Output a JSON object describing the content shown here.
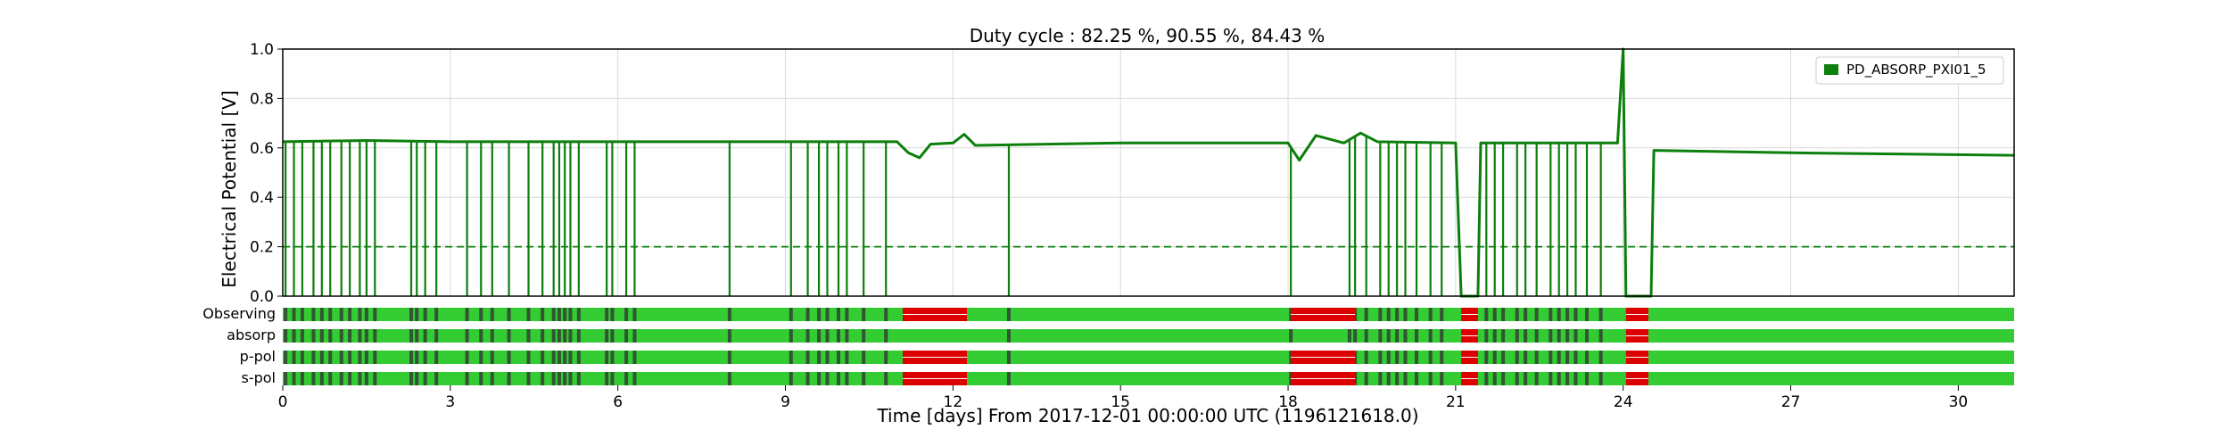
{
  "chart_data": {
    "type": "line",
    "title": "Duty cycle : 82.25 %, 90.55 %, 84.43 %",
    "ylabel": "Electrical Potential [V]",
    "xlabel": "Time [days] From 2017-12-01 00:00:00 UTC (1196121618.0)",
    "xlim": [
      0,
      31
    ],
    "ylim": [
      0,
      1.0
    ],
    "x_ticks": [
      0,
      3,
      6,
      9,
      12,
      15,
      18,
      21,
      24,
      27,
      30
    ],
    "y_ticks": [
      0.0,
      0.2,
      0.4,
      0.6,
      0.8,
      1.0
    ],
    "x_tick_labels": [
      "0",
      "3",
      "6",
      "9",
      "12",
      "15",
      "18",
      "21",
      "24",
      "27",
      "30"
    ],
    "y_tick_labels": [
      "0.0",
      "0.2",
      "0.4",
      "0.6",
      "0.8",
      "1.0"
    ],
    "grid": true,
    "legend_position": "top-right",
    "series": [
      {
        "name": "PD_ABSORP_PXI01_5",
        "color": "#0c7f0c",
        "baseline": [
          [
            0,
            0.625
          ],
          [
            1.5,
            0.63
          ],
          [
            3,
            0.625
          ],
          [
            6,
            0.625
          ],
          [
            9,
            0.625
          ],
          [
            11.0,
            0.625
          ],
          [
            11.2,
            0.58
          ],
          [
            11.4,
            0.56
          ],
          [
            11.6,
            0.615
          ],
          [
            12.0,
            0.62
          ],
          [
            12.2,
            0.655
          ],
          [
            12.4,
            0.61
          ],
          [
            15,
            0.62
          ],
          [
            18.0,
            0.62
          ],
          [
            18.2,
            0.55
          ],
          [
            18.5,
            0.65
          ],
          [
            19.0,
            0.62
          ],
          [
            19.3,
            0.66
          ],
          [
            19.6,
            0.625
          ],
          [
            21.0,
            0.62
          ],
          [
            21.1,
            0.0
          ],
          [
            21.4,
            0.0
          ],
          [
            21.45,
            0.62
          ],
          [
            23.9,
            0.62
          ],
          [
            24.0,
            1.0
          ],
          [
            24.05,
            0.0
          ],
          [
            24.5,
            0.0
          ],
          [
            24.55,
            0.59
          ],
          [
            27,
            0.58
          ],
          [
            31,
            0.57
          ]
        ],
        "dropouts": [
          0.05,
          0.2,
          0.35,
          0.55,
          0.7,
          0.85,
          1.05,
          1.2,
          1.38,
          1.5,
          1.65,
          2.3,
          2.4,
          2.55,
          2.75,
          3.3,
          3.55,
          3.75,
          4.05,
          4.4,
          4.65,
          4.85,
          4.95,
          5.05,
          5.15,
          5.3,
          5.8,
          5.9,
          6.15,
          6.3,
          8.0,
          9.1,
          9.4,
          9.6,
          9.75,
          9.95,
          10.1,
          10.4,
          10.8,
          13.0,
          18.05,
          19.1,
          19.2,
          19.4,
          19.65,
          19.8,
          19.95,
          20.1,
          20.3,
          20.55,
          20.75,
          21.55,
          21.7,
          21.85,
          22.1,
          22.25,
          22.45,
          22.7,
          22.85,
          23.0,
          23.15,
          23.35,
          23.6
        ],
        "threshold": 0.2
      }
    ],
    "segments": {
      "rows": [
        "Observing",
        "absorp",
        "p-pol",
        "s-pol"
      ],
      "colors": {
        "active": "#33cc33",
        "flagged": "#dd0000",
        "gap": "#335533"
      },
      "flagged_intervals": [
        [
          11.1,
          12.25
        ],
        [
          18.05,
          19.2
        ],
        [
          21.1,
          21.4
        ],
        [
          24.05,
          24.45
        ]
      ],
      "flagged_rows": [
        0,
        2,
        3
      ],
      "flagged_rows_absorp": [
        [
          21.1,
          21.4
        ],
        [
          24.05,
          24.45
        ]
      ]
    }
  }
}
